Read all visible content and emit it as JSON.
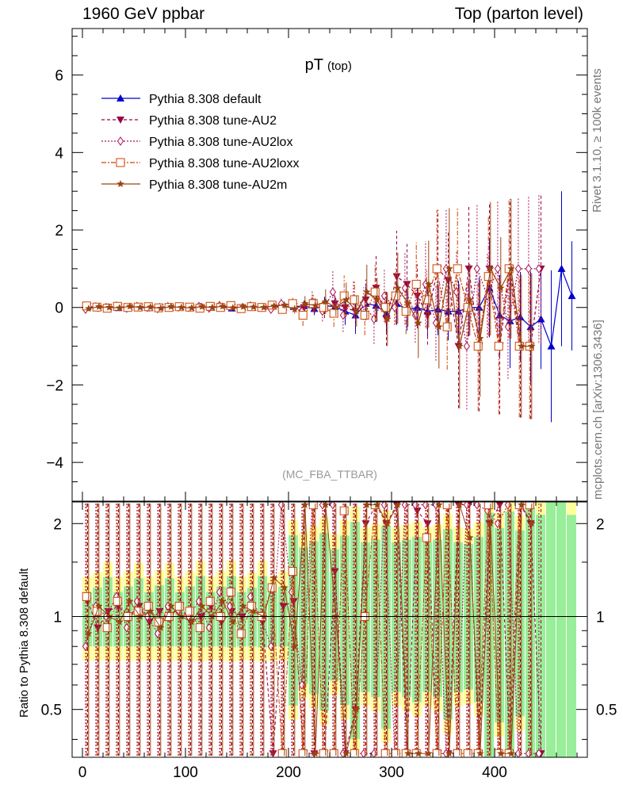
{
  "header": {
    "left": "1960 GeV ppbar",
    "right": "Top (parton level)"
  },
  "side_labels": {
    "rivet": "Rivet 3.1.10, ≥ 100k events",
    "mcplots": "mcplots.cern.ch [arXiv:1306.3436]"
  },
  "chart_data": {
    "type": "line",
    "title": "pT",
    "title_sub": "(top)",
    "watermark": "(MC_FBA_TTBAR)",
    "xlim": [
      -10,
      490
    ],
    "xticks": [
      0,
      100,
      200,
      300,
      400
    ],
    "main_panel": {
      "ylim": [
        -5,
        7.2
      ],
      "yticks": [
        -4,
        -2,
        0,
        2,
        4,
        6
      ],
      "ytick_labels": [
        "−4",
        "−2",
        "0",
        "2",
        "4",
        "6"
      ]
    },
    "ratio_panel": {
      "ylabel": "Ratio to Pythia 8.308 default",
      "scale": "log",
      "ylim": [
        0.35,
        2.35
      ],
      "yticks": [
        0.5,
        1,
        2
      ],
      "ytick_labels": [
        "0.5",
        "1",
        "2"
      ],
      "reference_line": 1
    },
    "legend_placement": "top-left",
    "series": [
      {
        "name": "Pythia 8.308 default",
        "color": "#0000cc",
        "marker": "triangle-up",
        "line": "solid",
        "x": [
          5,
          15,
          25,
          35,
          45,
          55,
          65,
          75,
          85,
          95,
          105,
          115,
          125,
          135,
          145,
          155,
          165,
          175,
          185,
          195,
          205,
          215,
          225,
          235,
          245,
          255,
          265,
          275,
          285,
          295,
          305,
          315,
          325,
          335,
          345,
          355,
          365,
          375,
          385,
          395,
          405,
          415,
          425,
          435,
          445,
          455,
          465,
          475
        ],
        "y": [
          0.02,
          0.0,
          0.01,
          -0.01,
          0.01,
          0.0,
          -0.01,
          0.02,
          0.0,
          0.01,
          -0.01,
          0.02,
          0.0,
          0.01,
          -0.02,
          0.01,
          0.0,
          0.02,
          0.03,
          0.01,
          0.02,
          0.04,
          -0.03,
          0.05,
          0.02,
          -0.1,
          -0.2,
          0.1,
          0.05,
          -0.15,
          0.1,
          -0.05,
          0.0,
          -0.1,
          -0.05,
          -0.1,
          -0.1,
          0.0,
          0.0,
          0.5,
          -0.2,
          -0.35,
          -0.25,
          -0.5,
          -0.3,
          -1.0,
          1.0,
          0.3
        ]
      },
      {
        "name": "Pythia 8.308 tune-AU2",
        "color": "#990044",
        "marker": "triangle-down",
        "line": "dashed",
        "x": [
          5,
          15,
          25,
          35,
          45,
          55,
          65,
          75,
          85,
          95,
          105,
          115,
          125,
          135,
          145,
          155,
          165,
          175,
          185,
          195,
          205,
          215,
          225,
          235,
          245,
          255,
          265,
          275,
          285,
          295,
          305,
          315,
          325,
          335,
          345,
          355,
          365,
          375,
          385,
          395,
          405,
          415,
          425,
          435,
          445
        ],
        "y": [
          0.03,
          -0.02,
          0.01,
          0.02,
          0.0,
          0.02,
          -0.01,
          0.01,
          0.0,
          0.02,
          -0.01,
          0.0,
          0.02,
          -0.01,
          0.01,
          0.0,
          0.02,
          -0.01,
          0.0,
          0.02,
          0.03,
          0.0,
          0.04,
          -0.05,
          0.1,
          0.0,
          -0.1,
          0.2,
          0.5,
          -0.3,
          0.8,
          0.6,
          0.3,
          -0.2,
          1.0,
          0.7,
          -1.0,
          1.0,
          -1.0,
          1.0,
          -1.0,
          1.0,
          -1.0,
          -1.0,
          1.0
        ]
      },
      {
        "name": "Pythia 8.308 tune-AU2lox",
        "color": "#aa1155",
        "marker": "diamond-open",
        "line": "dotted",
        "x": [
          3,
          13,
          23,
          33,
          43,
          53,
          63,
          73,
          83,
          93,
          103,
          113,
          123,
          133,
          143,
          153,
          163,
          173,
          183,
          193,
          203,
          213,
          223,
          233,
          243,
          253,
          263,
          273,
          283,
          293,
          303,
          313,
          323,
          333,
          343,
          353,
          363,
          373,
          383,
          393,
          403,
          413,
          423,
          433,
          443
        ],
        "y": [
          -0.05,
          0.02,
          0.0,
          0.04,
          -0.02,
          0.03,
          0.0,
          -0.03,
          0.02,
          0.01,
          0.0,
          0.03,
          -0.02,
          0.05,
          0.02,
          -0.03,
          0.04,
          0.0,
          -0.05,
          0.1,
          0.05,
          -0.1,
          0.15,
          -0.1,
          0.4,
          -0.2,
          0.2,
          0.1,
          -0.3,
          0.3,
          0.0,
          0.5,
          -0.2,
          0.6,
          -0.4,
          1.0,
          0.4,
          -1.0,
          1.0,
          0.3,
          1.0,
          -0.5,
          1.0,
          1.0,
          1.0
        ]
      },
      {
        "name": "Pythia 8.308 tune-AU2loxx",
        "color": "#cc4400",
        "marker": "square-open",
        "line": "dash-dot",
        "x": [
          4,
          14,
          24,
          34,
          44,
          54,
          64,
          74,
          84,
          94,
          104,
          114,
          124,
          134,
          144,
          154,
          164,
          174,
          184,
          194,
          204,
          214,
          224,
          234,
          244,
          254,
          264,
          274,
          284,
          294,
          304,
          314,
          324,
          334,
          344,
          354,
          364,
          374,
          384,
          394,
          404,
          414,
          424,
          434
        ],
        "y": [
          0.04,
          0.01,
          -0.02,
          0.03,
          0.0,
          0.01,
          0.02,
          -0.01,
          0.0,
          0.02,
          0.01,
          -0.02,
          0.03,
          0.0,
          0.05,
          -0.03,
          0.02,
          0.0,
          0.06,
          -0.05,
          0.1,
          -0.2,
          0.1,
          0.0,
          -0.15,
          0.3,
          0.2,
          -0.2,
          0.4,
          0.0,
          0.3,
          -0.1,
          0.6,
          0.2,
          1.0,
          -0.5,
          1.0,
          0.0,
          -1.0,
          0.8,
          -1.0,
          1.0,
          -1.0,
          -1.0
        ]
      },
      {
        "name": "Pythia 8.308 tune-AU2m",
        "color": "#994411",
        "marker": "star",
        "line": "solid",
        "x": [
          6,
          16,
          26,
          36,
          46,
          56,
          66,
          76,
          86,
          96,
          106,
          116,
          126,
          136,
          146,
          156,
          166,
          176,
          186,
          196,
          206,
          216,
          226,
          236,
          246,
          256,
          266,
          276,
          286,
          296,
          306,
          316,
          326,
          336,
          346,
          356,
          366,
          376,
          386,
          396,
          406,
          416,
          426,
          436
        ],
        "y": [
          -0.03,
          0.02,
          0.0,
          -0.01,
          0.03,
          0.0,
          0.01,
          -0.02,
          0.02,
          0.0,
          -0.01,
          0.02,
          0.0,
          0.03,
          -0.01,
          0.02,
          0.01,
          0.0,
          0.04,
          0.06,
          -0.05,
          0.1,
          0.05,
          0.15,
          0.0,
          0.2,
          -0.1,
          0.4,
          0.2,
          -0.3,
          0.5,
          0.1,
          -0.4,
          0.6,
          -0.5,
          1.0,
          -1.0,
          0.2,
          -0.8,
          1.0,
          0.5,
          1.0,
          -1.0,
          -1.0
        ]
      }
    ]
  }
}
